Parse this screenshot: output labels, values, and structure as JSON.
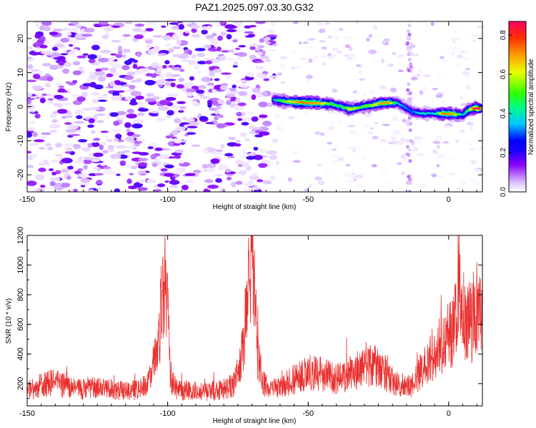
{
  "figure": {
    "title": "PAZ1.2025.097.03.30.G32"
  },
  "chart_data": [
    {
      "type": "heatmap",
      "title": "PAZ1.2025.097.03.30.G32",
      "xlabel": "Height of straight line (km)",
      "ylabel": "Frequency (Hz)",
      "xlim": [
        -150,
        12
      ],
      "ylim": [
        -25,
        25
      ],
      "xticks": [
        -150,
        -100,
        -50,
        0
      ],
      "yticks": [
        20,
        10,
        0,
        -10,
        -20
      ],
      "colorbar": {
        "label": "Normalized spectral amplitude",
        "range": [
          0,
          0.87
        ],
        "ticks": [
          0.0,
          0.2,
          0.4,
          0.6,
          0.8
        ],
        "colormap": [
          "#ffffff",
          "#d8b8ff",
          "#8a00ff",
          "#1a00ff",
          "#0000ff",
          "#00c8ff",
          "#00ff80",
          "#30ff00",
          "#e8ff00",
          "#ffa000",
          "#ff3000",
          "#ff0060"
        ]
      },
      "noise_extent_km": [
        -150,
        -62
      ],
      "signal_track": [
        {
          "x": -62,
          "y": 2.0,
          "amp": 0.45
        },
        {
          "x": -58,
          "y": 1.6,
          "amp": 0.6
        },
        {
          "x": -52,
          "y": 1.2,
          "amp": 0.75
        },
        {
          "x": -46,
          "y": 1.0,
          "amp": 0.7
        },
        {
          "x": -42,
          "y": 0.8,
          "amp": 0.55
        },
        {
          "x": -38,
          "y": 0.0,
          "amp": 0.5
        },
        {
          "x": -35,
          "y": -0.8,
          "amp": 0.65
        },
        {
          "x": -31,
          "y": 0.0,
          "amp": 0.55
        },
        {
          "x": -27,
          "y": 0.5,
          "amp": 0.6
        },
        {
          "x": -24,
          "y": 1.0,
          "amp": 0.72
        },
        {
          "x": -21,
          "y": 1.2,
          "amp": 0.7
        },
        {
          "x": -18,
          "y": 1.0,
          "amp": 0.4
        },
        {
          "x": -13,
          "y": -1.5,
          "amp": 0.35
        },
        {
          "x": -9,
          "y": -2.0,
          "amp": 0.45
        },
        {
          "x": -5,
          "y": -2.0,
          "amp": 0.4
        },
        {
          "x": -2,
          "y": -2.0,
          "amp": 0.75
        },
        {
          "x": 2,
          "y": -2.2,
          "amp": 0.7
        },
        {
          "x": 5,
          "y": -2.5,
          "amp": 0.4
        },
        {
          "x": 7,
          "y": -1.0,
          "amp": 0.55
        },
        {
          "x": 9,
          "y": -0.5,
          "amp": 0.8
        },
        {
          "x": 11,
          "y": -0.5,
          "amp": 0.9
        }
      ]
    },
    {
      "type": "line",
      "xlabel": "Height of straight line (km)",
      "ylabel": "SNR (10 * v/v)",
      "xlim": [
        -150,
        12
      ],
      "ylim": [
        50,
        1200
      ],
      "xticks": [
        -150,
        -100,
        -50,
        0
      ],
      "yticks": [
        200,
        400,
        600,
        800,
        1000,
        1200
      ],
      "series": [
        {
          "color": "#e8312f",
          "x": [
            -150,
            -145,
            -140,
            -135,
            -130,
            -125,
            -120,
            -115,
            -110,
            -106,
            -104,
            -102,
            -101,
            -100,
            -99,
            -97,
            -95,
            -90,
            -85,
            -80,
            -76,
            -74,
            -72,
            -71,
            -70,
            -69,
            -68,
            -66,
            -63,
            -60,
            -55,
            -50,
            -45,
            -40,
            -35,
            -30,
            -27,
            -25,
            -20,
            -15,
            -12,
            -10,
            -6,
            -4,
            -2,
            0,
            2,
            3.5,
            5,
            7,
            9,
            11,
            12
          ],
          "y": [
            150,
            190,
            210,
            170,
            160,
            170,
            160,
            150,
            160,
            230,
            420,
            700,
            900,
            700,
            250,
            160,
            150,
            150,
            150,
            160,
            200,
            350,
            650,
            900,
            1000,
            800,
            400,
            200,
            160,
            170,
            230,
            280,
            260,
            230,
            270,
            300,
            330,
            300,
            220,
            180,
            200,
            280,
            380,
            430,
            480,
            520,
            560,
            900,
            650,
            600,
            620,
            650,
            640
          ]
        }
      ]
    }
  ]
}
